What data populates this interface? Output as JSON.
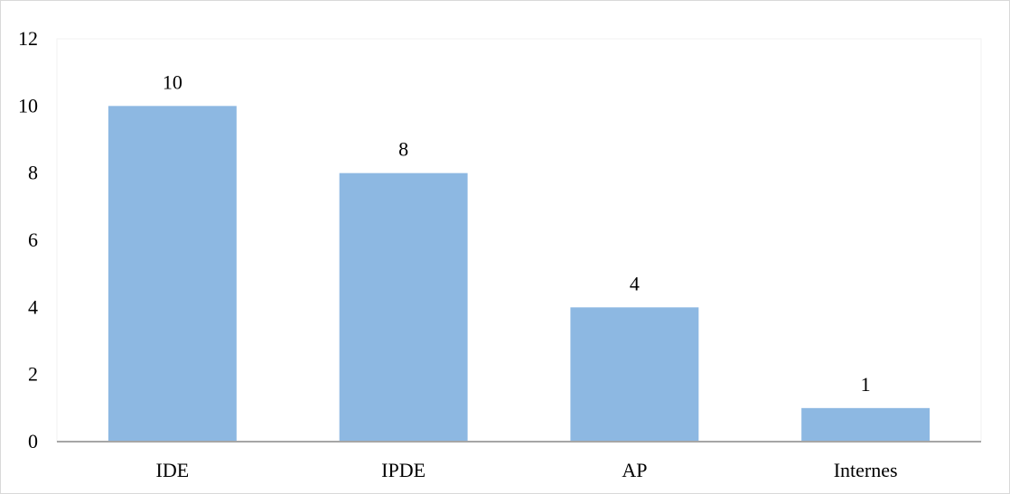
{
  "chart_data": {
    "type": "bar",
    "title": "",
    "xlabel": "",
    "ylabel": "",
    "categories": [
      "IDE",
      "IPDE",
      "AP",
      "Internes"
    ],
    "values": [
      10,
      8,
      4,
      1
    ],
    "data_labels": [
      "10",
      "8",
      "4",
      "1"
    ],
    "ylim": [
      0,
      12
    ],
    "yticks": [
      0,
      2,
      4,
      6,
      8,
      10,
      12
    ],
    "ytick_labels": [
      "0",
      "2",
      "4",
      "6",
      "8",
      "10",
      "12"
    ],
    "grid": false,
    "legend": "none",
    "bar_color": "#8db8e2",
    "axis_color": "#a6a6a6",
    "plot_area_border_color": "#f2f2f2"
  }
}
